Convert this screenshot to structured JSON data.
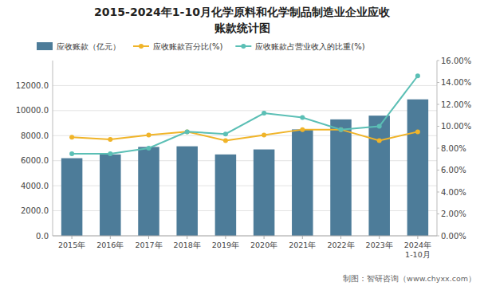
{
  "chart_data": {
    "type": "bar",
    "title": "2015-2024年1-10月化学原料和化学制品制造业企业应收",
    "subtitle": "账款统计图",
    "annotations": [
      "制图：智研咨询（www.chyxx.com）"
    ],
    "categories": [
      "2015年",
      "2016年",
      "2017年",
      "2018年",
      "2019年",
      "2020年",
      "2021年",
      "2022年",
      "2023年",
      "2024年\n1-10月"
    ],
    "series": [
      {
        "name": "应收账款（亿元）",
        "type": "bar",
        "color": "#4d7c99",
        "values": [
          6200,
          6500,
          7100,
          7150,
          6500,
          6900,
          8500,
          9300,
          9600,
          10900
        ]
      },
      {
        "name": "应收账款百分比(%)",
        "type": "line",
        "axis": "y2",
        "color": "#f0b429",
        "marker": "circle",
        "line_style": "solid",
        "values": [
          9.0,
          8.8,
          9.2,
          9.5,
          8.7,
          9.2,
          9.7,
          9.7,
          8.7,
          9.5
        ]
      },
      {
        "name": "应收账款占营业收入的比重(%)",
        "type": "line",
        "axis": "y2",
        "color": "#5bbfb5",
        "marker": "circle",
        "line_style": "solid",
        "values": [
          7.5,
          7.5,
          8.0,
          9.5,
          9.3,
          11.2,
          10.8,
          9.7,
          10.0,
          14.6
        ]
      }
    ],
    "ylim": [
      0,
      14000
    ],
    "yticks": [
      {
        "value": 0,
        "label": "0.0"
      },
      {
        "value": 2000,
        "label": "2000.0"
      },
      {
        "value": 4000,
        "label": "4000.0"
      },
      {
        "value": 6000,
        "label": "6000.0"
      },
      {
        "value": 8000,
        "label": "8000.0"
      },
      {
        "value": 10000,
        "label": "10000.0"
      },
      {
        "value": 12000,
        "label": "12000.0"
      }
    ],
    "y2lim": [
      0,
      16
    ],
    "y2ticks": [
      {
        "value": 0,
        "label": "0.00%"
      },
      {
        "value": 2,
        "label": "2.00%"
      },
      {
        "value": 4,
        "label": "4.00%"
      },
      {
        "value": 6,
        "label": "6.00%"
      },
      {
        "value": 8,
        "label": "8.00%"
      },
      {
        "value": 10,
        "label": "10.00%"
      },
      {
        "value": 12,
        "label": "12.00%"
      },
      {
        "value": 14,
        "label": "14.00%"
      },
      {
        "value": 16,
        "label": "16.00%"
      }
    ],
    "grid": true,
    "legend": "upper left"
  }
}
